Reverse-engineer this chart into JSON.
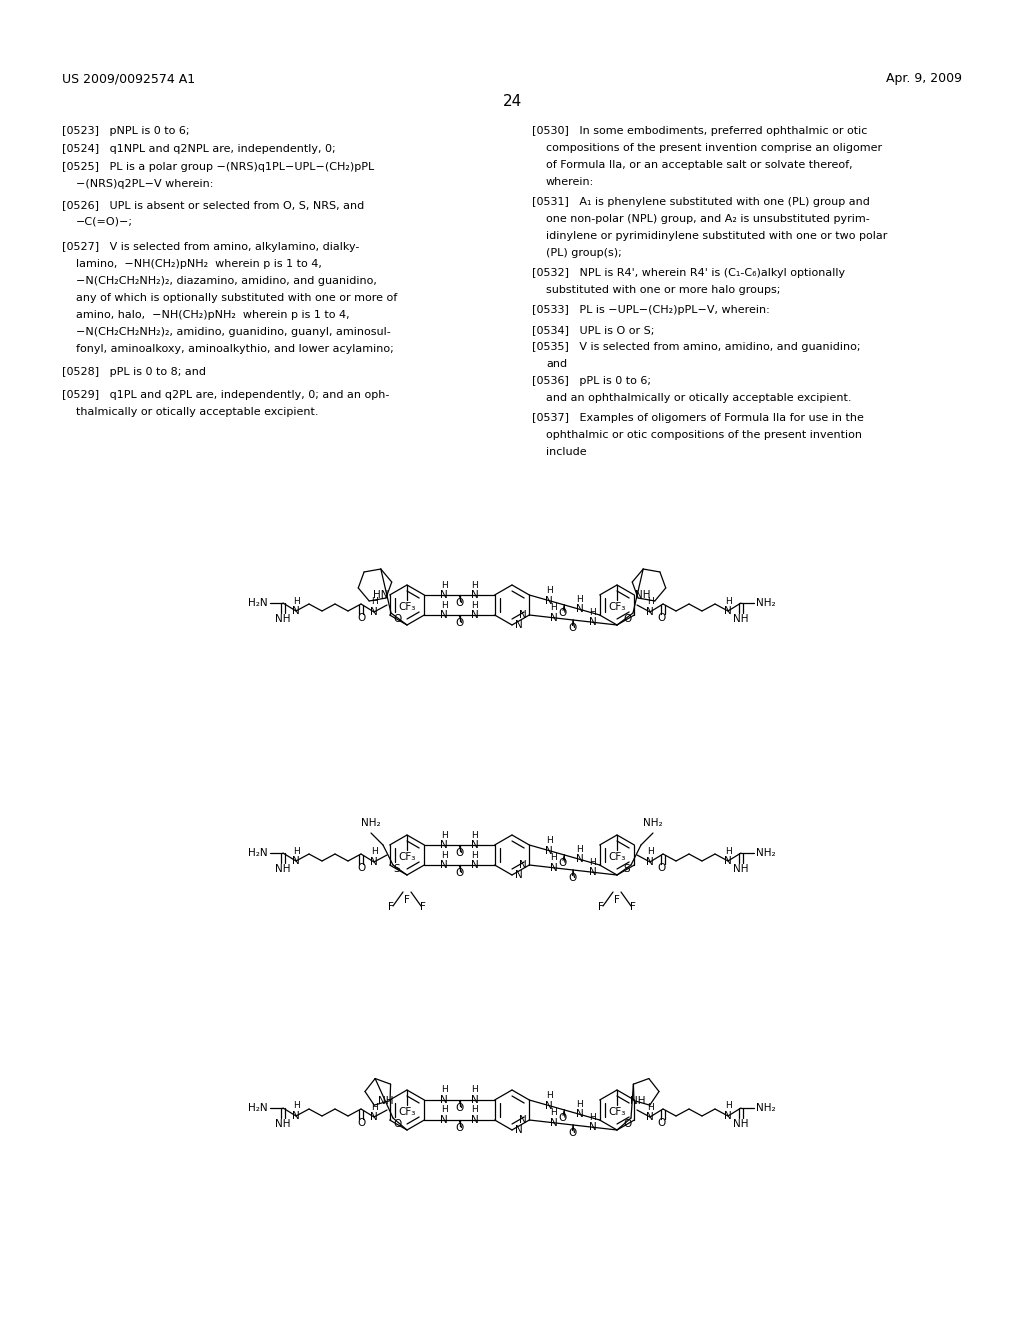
{
  "bg": "#ffffff",
  "tc": "#000000",
  "header_left": "US 2009/0092574 A1",
  "header_right": "Apr. 9, 2009",
  "page_num": "24",
  "fig_w": 10.24,
  "fig_h": 13.2
}
